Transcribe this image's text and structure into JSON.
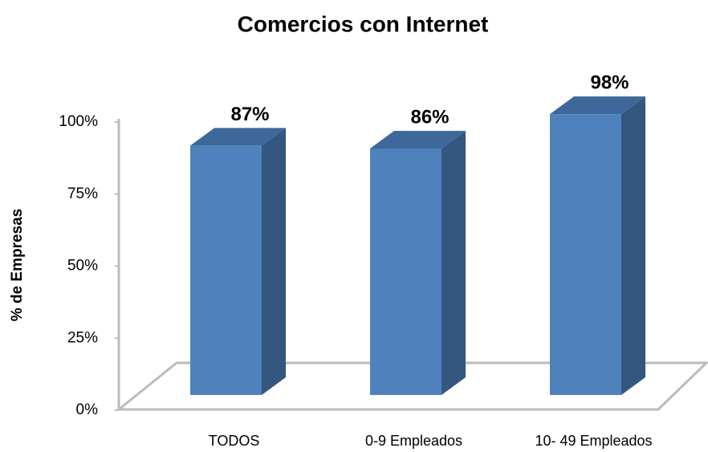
{
  "chart_data": {
    "type": "bar3d",
    "title": "Comercios con Internet",
    "y_label": "% de Empresas",
    "categories": [
      "TODOS",
      "0-9 Empleados",
      "10- 49 Empleados"
    ],
    "values": [
      87,
      86,
      98
    ],
    "value_labels": [
      "87%",
      "86%",
      "98%"
    ],
    "color": "#4f81bd",
    "ylim": [
      0,
      100
    ],
    "yticks": [
      {
        "value": 0,
        "label": "0%"
      },
      {
        "value": 25,
        "label": "25%"
      },
      {
        "value": 50,
        "label": "50%"
      },
      {
        "value": 75,
        "label": "75%"
      },
      {
        "value": 100,
        "label": "100%"
      }
    ]
  }
}
